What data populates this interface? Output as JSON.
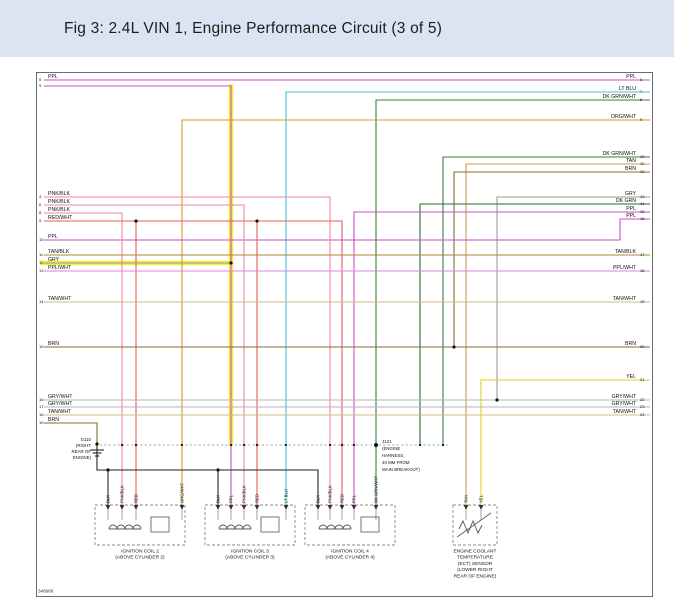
{
  "header": {
    "title": "Fig 3: 2.4L VIN 1, Engine Performance Circuit (3 of 5)"
  },
  "doc_number": "346666",
  "wire_colors": {
    "PPL": "#c94fc9",
    "LT_BLU": "#3cc4d8",
    "DK_GRN_WHT": "#3c7d3c",
    "DK_GRN": "#2e6b2e",
    "ORG_WHT": "#d9972e",
    "TAN": "#c79c55",
    "BRN": "#8a6b35",
    "GRY": "#9a9a9a",
    "GRY_WHT": "#b5b5b5",
    "PNK_BLK": "#ee85a4",
    "RED_WHT": "#e25c5c",
    "TAN_BLK": "#ad873e",
    "TAN_WHT": "#d2b98a",
    "PPL_WHT": "#d886d8",
    "YEL": "#ddd020",
    "BLK": "#222222",
    "HIGHLIGHT": "#f6ee3d"
  },
  "left_connector": [
    {
      "pin": "5",
      "label": "PPL"
    },
    {
      "pin": "9",
      "label": ""
    },
    {
      "pin": "4",
      "label": "PNK/BLK"
    },
    {
      "pin": "6",
      "label": "PNK/BLK"
    },
    {
      "pin": "8",
      "label": "PNK/BLK"
    },
    {
      "pin": "9",
      "label": "RED/WHT"
    },
    {
      "pin": "10",
      "label": "PPL"
    },
    {
      "pin": "11",
      "label": "TAN/BLK"
    },
    {
      "pin": "12",
      "label": "GRY"
    },
    {
      "pin": "13",
      "label": "PPL/WHT"
    },
    {
      "pin": "14",
      "label": "TAN/WHT"
    },
    {
      "pin": "15",
      "label": "BRN"
    },
    {
      "pin": "16",
      "label": "GRY/WHT"
    },
    {
      "pin": "17",
      "label": "GRY/WHT"
    },
    {
      "pin": "18",
      "label": "TAN/WHT"
    },
    {
      "pin": "19",
      "label": "BRN"
    }
  ],
  "right_connector": [
    {
      "pin": "6",
      "label": "PPL"
    },
    {
      "pin": "7",
      "label": "LT BLU"
    },
    {
      "pin": "8",
      "label": "DK GRN/WHT"
    },
    {
      "pin": "9",
      "label": "ORG/WHT"
    },
    {
      "pin": "10",
      "label": "DK GRN/WHT"
    },
    {
      "pin": "11",
      "label": "TAN"
    },
    {
      "pin": "12",
      "label": "BRN"
    },
    {
      "pin": "13",
      "label": "GRY"
    },
    {
      "pin": "14",
      "label": "DK GRN"
    },
    {
      "pin": "15",
      "label": "PPL"
    },
    {
      "pin": "16",
      "label": "PPL"
    },
    {
      "pin": "17",
      "label": "TAN/BLK"
    },
    {
      "pin": "18",
      "label": "PPL/WHT"
    },
    {
      "pin": "19",
      "label": "TAN/WHT"
    },
    {
      "pin": "20",
      "label": "BRN"
    },
    {
      "pin": "21",
      "label": "YEL"
    },
    {
      "pin": "22",
      "label": "GRY/WHT"
    },
    {
      "pin": "23",
      "label": "GRY/WHT"
    },
    {
      "pin": "24",
      "label": "TAN/WHT"
    }
  ],
  "components": {
    "coil2": {
      "lines": [
        "IGNITION COIL 2",
        "(ABOVE CYLINDER 2)"
      ],
      "wire_labels": [
        "BLK",
        "PNK/BLK",
        "RED",
        "ORG/WHT"
      ]
    },
    "coil3": {
      "lines": [
        "IGNITION COIL 3",
        "(ABOVE CYLINDER 3)"
      ],
      "wire_labels": [
        "BLK",
        "PPL",
        "PNK/BLK",
        "RED",
        "LT BLU"
      ]
    },
    "coil4": {
      "lines": [
        "IGNITION COIL 4",
        "(ABOVE CYLINDER 4)"
      ],
      "wire_labels": [
        "BLK",
        "PNK/BLK",
        "RED",
        "PPL",
        "DK GRN/WHT"
      ]
    },
    "ect": {
      "lines": [
        "ENGINE COOLANT",
        "TEMPERATURE",
        "(ECT) SENSOR",
        "(LOWER RIGHT",
        "REAR OF ENGINE)"
      ],
      "wire_labels": [
        "TAN",
        "YEL"
      ]
    }
  },
  "ground": {
    "lines": [
      "G110",
      "(RIGHT",
      "REAR OF",
      "ENGINE)"
    ]
  },
  "splice": {
    "lines": [
      "J121",
      "(ENGINE",
      "HARNESS,",
      "40 MM FROM",
      "MAIN BREAKOUT)"
    ]
  }
}
